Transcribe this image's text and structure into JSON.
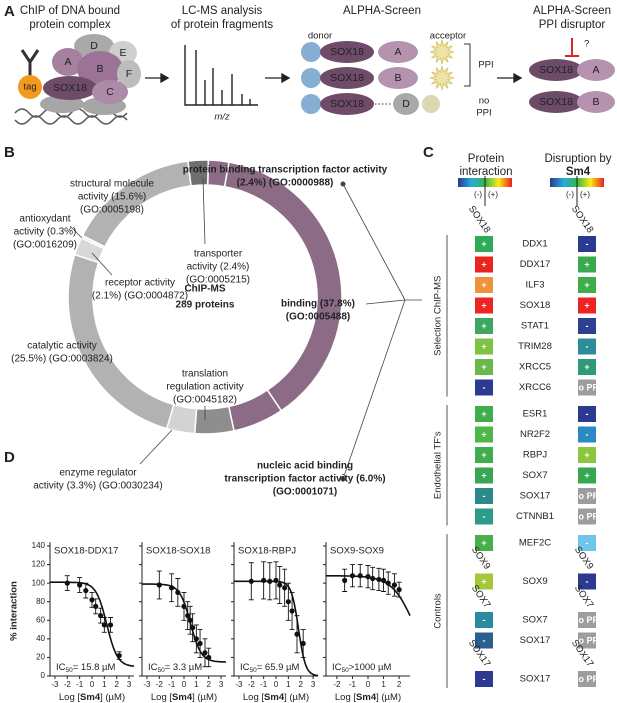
{
  "panel_a": {
    "label": "A",
    "step1": [
      "ChIP of DNA bound",
      "protein complex"
    ],
    "proteins": [
      "D",
      "E",
      "A",
      "B",
      "F",
      "SOX18",
      "C"
    ],
    "tag": "tag",
    "step2": [
      "LC-MS analysis",
      "of protein fragments"
    ],
    "mz": "m/z",
    "step3": "ALPHA-Screen",
    "donor": "donor",
    "acceptor": "acceptor",
    "rows": [
      [
        "SOX18",
        "A"
      ],
      [
        "SOX18",
        "B"
      ],
      [
        "SOX18",
        "D"
      ]
    ],
    "ppi": "PPI",
    "no_ppi": [
      "no",
      "PPI"
    ],
    "step4": [
      "ALPHA-Screen",
      "PPI disruptor"
    ],
    "question": "?",
    "disruptor_rows": [
      [
        "SOX18",
        "A"
      ],
      [
        "SOX18",
        "B"
      ]
    ]
  },
  "panel_b": {
    "label": "B",
    "center": [
      "ChIP-MS",
      "289 proteins"
    ],
    "segments": [
      {
        "label": [
          "transporter",
          "activity (2.4%)",
          "(GO:0005215)"
        ],
        "value": 2.4,
        "color": "#6f6f6f"
      },
      {
        "label": [
          "protein binding transcription factor activity",
          "(2.4%) (GO:0000988)"
        ],
        "value": 2.4,
        "color": "#8b6b86",
        "bold": true
      },
      {
        "label": [
          "binding (37.8%)",
          "(GO:0005488)"
        ],
        "value": 37.8,
        "color": "#8b6b86",
        "bold": true
      },
      {
        "label": [
          "nucleic acid binding",
          "transcription factor activity (6.0%)",
          "(GO:0001071)"
        ],
        "value": 6.0,
        "color": "#8b6b86",
        "bold": true
      },
      {
        "label": [
          "translation",
          "regulation activity",
          "(GO:0045182)"
        ],
        "value": 4.6,
        "color": "#8e8e8e"
      },
      {
        "label": [
          "enzyme regulator",
          "activity (3.3%) (GO:0030234)"
        ],
        "value": 3.3,
        "color": "#d3d3d3"
      },
      {
        "label": [
          "catalytic activity",
          "(25.5%) (GO:0003824)"
        ],
        "value": 25.5,
        "color": "#b2b2b2"
      },
      {
        "label": [
          "receptor activity",
          "(2.1%) (GO:0004872)"
        ],
        "value": 2.1,
        "color": "#d8d8d8"
      },
      {
        "label": [
          "antioxydant",
          "activity (0.3%)",
          "(GO:0016209)"
        ],
        "value": 0.3,
        "color": "#ececec"
      },
      {
        "label": [
          "structural molecule",
          "activity (15.6%)",
          "(GO:0005198)"
        ],
        "value": 15.6,
        "color": "#b2b2b2"
      }
    ]
  },
  "panel_c": {
    "label": "C",
    "title_left": [
      "Protein",
      "interaction"
    ],
    "title_right": [
      "Disruption by",
      "Sm4"
    ],
    "scale": [
      "(-)",
      "(+)"
    ],
    "scale_colors": [
      "#2b3990",
      "#27aae1",
      "#39b54a",
      "#f7ec13",
      "#ed1c24"
    ],
    "column_header": "SOX18",
    "groups": [
      {
        "name": "Selection ChIP-MS",
        "sections": [
          {
            "rows": [
              {
                "name": "DDX1",
                "interaction": {
                  "sign": "+",
                  "color": "#2eaa55"
                },
                "disruption": {
                  "sign": "-",
                  "color": "#2b3990"
                }
              },
              {
                "name": "DDX17",
                "interaction": {
                  "sign": "+",
                  "color": "#e8261f"
                },
                "disruption": {
                  "sign": "+",
                  "color": "#3aaa4c"
                }
              },
              {
                "name": "ILF3",
                "interaction": {
                  "sign": "+",
                  "color": "#f0923a"
                },
                "disruption": {
                  "sign": "+",
                  "color": "#3fae4a"
                }
              },
              {
                "name": "SOX18",
                "interaction": {
                  "sign": "+",
                  "color": "#ec2424"
                },
                "disruption": {
                  "sign": "+",
                  "color": "#ec2424"
                }
              },
              {
                "name": "STAT1",
                "interaction": {
                  "sign": "+",
                  "color": "#3da760"
                },
                "disruption": {
                  "sign": "-",
                  "color": "#2b3f93"
                }
              },
              {
                "name": "TRIM28",
                "interaction": {
                  "sign": "+",
                  "color": "#7dc242"
                },
                "disruption": {
                  "sign": "-",
                  "color": "#2c8d9a"
                }
              },
              {
                "name": "XRCC5",
                "interaction": {
                  "sign": "+",
                  "color": "#6bb84a"
                },
                "disruption": {
                  "sign": "+",
                  "color": "#2f9a7a"
                }
              },
              {
                "name": "XRCC6",
                "interaction": {
                  "sign": "-",
                  "color": "#2b3990"
                },
                "disruption": {
                  "sign": "no PPI",
                  "color": "#9d9d9d"
                }
              }
            ]
          }
        ]
      },
      {
        "name": "Endothelial TF's",
        "sections": [
          {
            "rows": [
              {
                "name": "ESR1",
                "interaction": {
                  "sign": "+",
                  "color": "#3fae4a"
                },
                "disruption": {
                  "sign": "-",
                  "color": "#2b3990"
                }
              },
              {
                "name": "NR2F2",
                "interaction": {
                  "sign": "+",
                  "color": "#4db848"
                },
                "disruption": {
                  "sign": "-",
                  "color": "#2a8bc0"
                }
              },
              {
                "name": "RBPJ",
                "interaction": {
                  "sign": "+",
                  "color": "#41ad4e"
                },
                "disruption": {
                  "sign": "+",
                  "color": "#8cc63f"
                }
              },
              {
                "name": "SOX7",
                "interaction": {
                  "sign": "+",
                  "color": "#3aa655"
                },
                "disruption": {
                  "sign": "+",
                  "color": "#37a852"
                }
              },
              {
                "name": "SOX17",
                "interaction": {
                  "sign": "-",
                  "color": "#2a8b8d"
                },
                "disruption": {
                  "sign": "no PPI",
                  "color": "#9d9d9d"
                }
              },
              {
                "name": "CTNNB1",
                "interaction": {
                  "sign": "-",
                  "color": "#2e9a8a"
                },
                "disruption": {
                  "sign": "no PPI",
                  "color": "#9d9d9d"
                }
              }
            ]
          }
        ]
      },
      {
        "name": "Controls",
        "sections": [
          {
            "rows": [
              {
                "name": "MEF2C",
                "interaction": {
                  "sign": "+",
                  "color": "#47b04b"
                },
                "disruption": {
                  "sign": "-",
                  "color": "#6ec6e8"
                }
              }
            ]
          },
          {
            "bait": "SOX9",
            "rows": [
              {
                "name": "SOX9",
                "interaction": {
                  "sign": "+",
                  "color": "#a3c93a"
                },
                "disruption": {
                  "sign": "-",
                  "color": "#2b3990"
                }
              }
            ]
          },
          {
            "bait": "SOX7",
            "rows": [
              {
                "name": "SOX7",
                "interaction": {
                  "sign": "-",
                  "color": "#2a8ba0"
                },
                "disruption": {
                  "sign": "no PPI",
                  "color": "#9d9d9d"
                }
              },
              {
                "name": "SOX17",
                "interaction": {
                  "sign": "-",
                  "color": "#2a5f90"
                },
                "disruption": {
                  "sign": "no PPI",
                  "color": "#9d9d9d"
                }
              }
            ]
          },
          {
            "bait": "SOX17",
            "rows": [
              {
                "name": "SOX17",
                "interaction": {
                  "sign": "-",
                  "color": "#2b3990"
                },
                "disruption": {
                  "sign": "no PPI",
                  "color": "#9d9d9d"
                }
              }
            ]
          }
        ]
      }
    ]
  },
  "panel_d": {
    "label": "D",
    "y_label": "% interaction",
    "x_label": [
      "Log [",
      "Sm4",
      "] (µM)"
    ],
    "ylim": [
      0,
      140
    ],
    "yticks": [
      0,
      20,
      40,
      60,
      80,
      100,
      120,
      140
    ],
    "plots": [
      {
        "title": "SOX18-DDX17",
        "xlim": [
          -3.4,
          3.4
        ],
        "xticks": [
          -3,
          -2,
          -1,
          0,
          1,
          2,
          3
        ],
        "x": [
          -2,
          -1,
          -0.5,
          0,
          0.3,
          0.7,
          1,
          1.5,
          2.2
        ],
        "y": [
          100,
          98,
          92,
          82,
          75,
          65,
          55,
          55,
          22
        ],
        "err": [
          8,
          8,
          8,
          8,
          8,
          8,
          8,
          8,
          4
        ],
        "fit": {
          "top": 101,
          "bottom": 10,
          "hill": 1
        },
        "ic50": {
          "value": 15.8,
          "label": [
            "IC",
            "50",
            "= 15.8 µM"
          ]
        }
      },
      {
        "title": "SOX18-SOX18",
        "xlim": [
          -3.4,
          3.4
        ],
        "xticks": [
          -3,
          -2,
          -1,
          0,
          1,
          2,
          3
        ],
        "x": [
          -2,
          -1,
          -0.5,
          0,
          0.3,
          0.5,
          0.7,
          1,
          1.3,
          1.7,
          2
        ],
        "y": [
          98,
          95,
          90,
          75,
          65,
          60,
          52,
          40,
          35,
          25,
          20
        ],
        "err": [
          15,
          15,
          15,
          15,
          15,
          15,
          15,
          15,
          15,
          15,
          10
        ],
        "fit": {
          "top": 99,
          "bottom": 15,
          "hill": 1
        },
        "ic50": {
          "value": 3.3,
          "label": [
            "IC",
            "50",
            "= 3.3 µM"
          ]
        }
      },
      {
        "title": "SOX18-RBPJ",
        "xlim": [
          -3.4,
          3.4
        ],
        "xticks": [
          -3,
          -2,
          -1,
          0,
          1,
          2,
          3
        ],
        "x": [
          -2,
          -1,
          -0.5,
          0,
          0.3,
          0.7,
          1,
          1.3,
          1.7,
          2.2
        ],
        "y": [
          102,
          103,
          102,
          103,
          98,
          95,
          80,
          70,
          45,
          35
        ],
        "err": [
          20,
          20,
          20,
          20,
          20,
          20,
          20,
          20,
          20,
          15
        ],
        "fit": {
          "top": 102,
          "bottom": 0,
          "hill": 1.5
        },
        "ic50": {
          "value": 65.9,
          "label": [
            "IC",
            "50",
            "= 65.9 µM"
          ]
        }
      },
      {
        "title": "SOX9-SOX9",
        "xlim": [
          -2.7,
          2.7
        ],
        "xticks": [
          -2,
          -1,
          0,
          1,
          2
        ],
        "x": [
          -1.5,
          -1,
          -0.5,
          0,
          0.3,
          0.7,
          1,
          1.3,
          1.7,
          2
        ],
        "y": [
          103,
          108,
          108,
          107,
          105,
          104,
          103,
          100,
          98,
          93
        ],
        "err": [
          12,
          12,
          12,
          12,
          12,
          12,
          12,
          12,
          12,
          8
        ],
        "fit": {
          "top": 108,
          "bottom": 0,
          "hill": 0.6
        },
        "ic50": {
          "value": 1000,
          "label": [
            "IC",
            "50",
            ">1000 µM"
          ]
        }
      }
    ]
  }
}
